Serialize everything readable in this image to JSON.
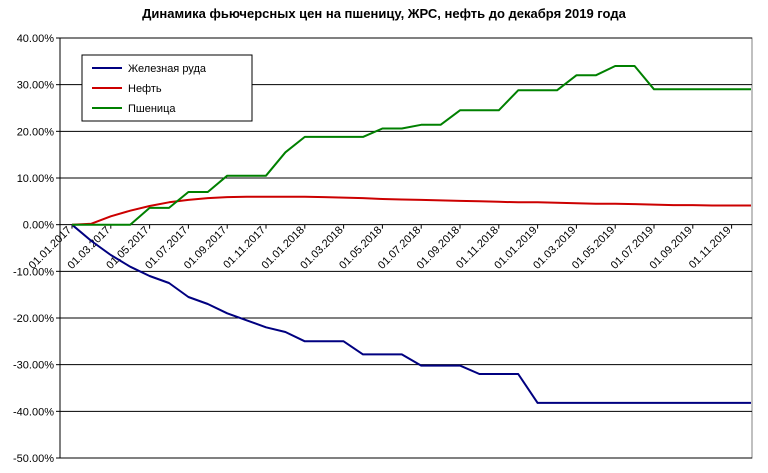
{
  "chart_data": {
    "type": "line",
    "title": "Динамика фьючерсных цен на пшеницу, ЖРС, нефть до декабря 2019 года",
    "xlabel": "",
    "ylabel": "",
    "x": [
      "01.01.2017",
      "01.02.2017",
      "01.03.2017",
      "01.04.2017",
      "01.05.2017",
      "01.06.2017",
      "01.07.2017",
      "01.08.2017",
      "01.09.2017",
      "01.10.2017",
      "01.11.2017",
      "01.12.2017",
      "01.01.2018",
      "01.02.2018",
      "01.03.2018",
      "01.04.2018",
      "01.05.2018",
      "01.06.2018",
      "01.07.2018",
      "01.08.2018",
      "01.09.2018",
      "01.10.2018",
      "01.11.2018",
      "01.12.2018",
      "01.01.2019",
      "01.02.2019",
      "01.03.2019",
      "01.04.2019",
      "01.05.2019",
      "01.06.2019",
      "01.07.2019",
      "01.08.2019",
      "01.09.2019",
      "01.10.2019",
      "01.11.2019",
      "01.12.2019"
    ],
    "x_tick_labels": [
      "01.01.2017",
      "01.03.2017",
      "01.05.2017",
      "01.07.2017",
      "01.09.2017",
      "01.11.2017",
      "01.01.2018",
      "01.03.2018",
      "01.05.2018",
      "01.07.2018",
      "01.09.2018",
      "01.11.2018",
      "01.01.2019",
      "01.03.2019",
      "01.05.2019",
      "01.07.2019",
      "01.09.2019",
      "01.11.2019"
    ],
    "y_tick_labels": [
      "40.00%",
      "30.00%",
      "20.00%",
      "10.00%",
      "0.00%",
      "-10.00%",
      "-20.00%",
      "-30.00%",
      "-40.00%",
      "-50.00%"
    ],
    "y_ticks": [
      40,
      30,
      20,
      10,
      0,
      -10,
      -20,
      -30,
      -40,
      -50
    ],
    "ylim": [
      -50,
      40
    ],
    "grid": "horizontal",
    "legend_position": "top-left",
    "series": [
      {
        "name": "Железная руда",
        "color": "#000080",
        "values": [
          0,
          -3.5,
          -6.5,
          -9,
          -11,
          -12.5,
          -15.5,
          -17,
          -19,
          -20.5,
          -22,
          -23,
          -25,
          -25,
          -25,
          -27.8,
          -27.8,
          -27.8,
          -30.2,
          -30.2,
          -30.2,
          -32,
          -32,
          -32,
          -38.2,
          -38.2,
          -38.2,
          -38.2,
          -38.2,
          -38.2,
          -38.2,
          -38.2,
          -38.2,
          -38.2,
          -38.2,
          -38.2
        ]
      },
      {
        "name": "Нефть",
        "color": "#cc0000",
        "values": [
          0,
          0.2,
          1.8,
          3.0,
          4.0,
          4.8,
          5.3,
          5.7,
          5.9,
          6.0,
          6.0,
          6.0,
          6.0,
          5.9,
          5.8,
          5.7,
          5.5,
          5.4,
          5.3,
          5.2,
          5.1,
          5.0,
          4.9,
          4.8,
          4.8,
          4.7,
          4.6,
          4.5,
          4.5,
          4.4,
          4.3,
          4.2,
          4.2,
          4.1,
          4.1,
          4.1
        ]
      },
      {
        "name": "Пшеница",
        "color": "#008000",
        "values": [
          0,
          0,
          0,
          0,
          3.6,
          3.6,
          7.0,
          7.0,
          10.5,
          10.5,
          10.5,
          15.5,
          18.8,
          18.8,
          18.8,
          18.8,
          20.6,
          20.6,
          21.4,
          21.4,
          24.5,
          24.5,
          24.5,
          28.8,
          28.8,
          28.8,
          32.0,
          32.0,
          34.0,
          34.0,
          29.0,
          29.0,
          29.0,
          29.0,
          29.0,
          29.0
        ]
      }
    ]
  }
}
